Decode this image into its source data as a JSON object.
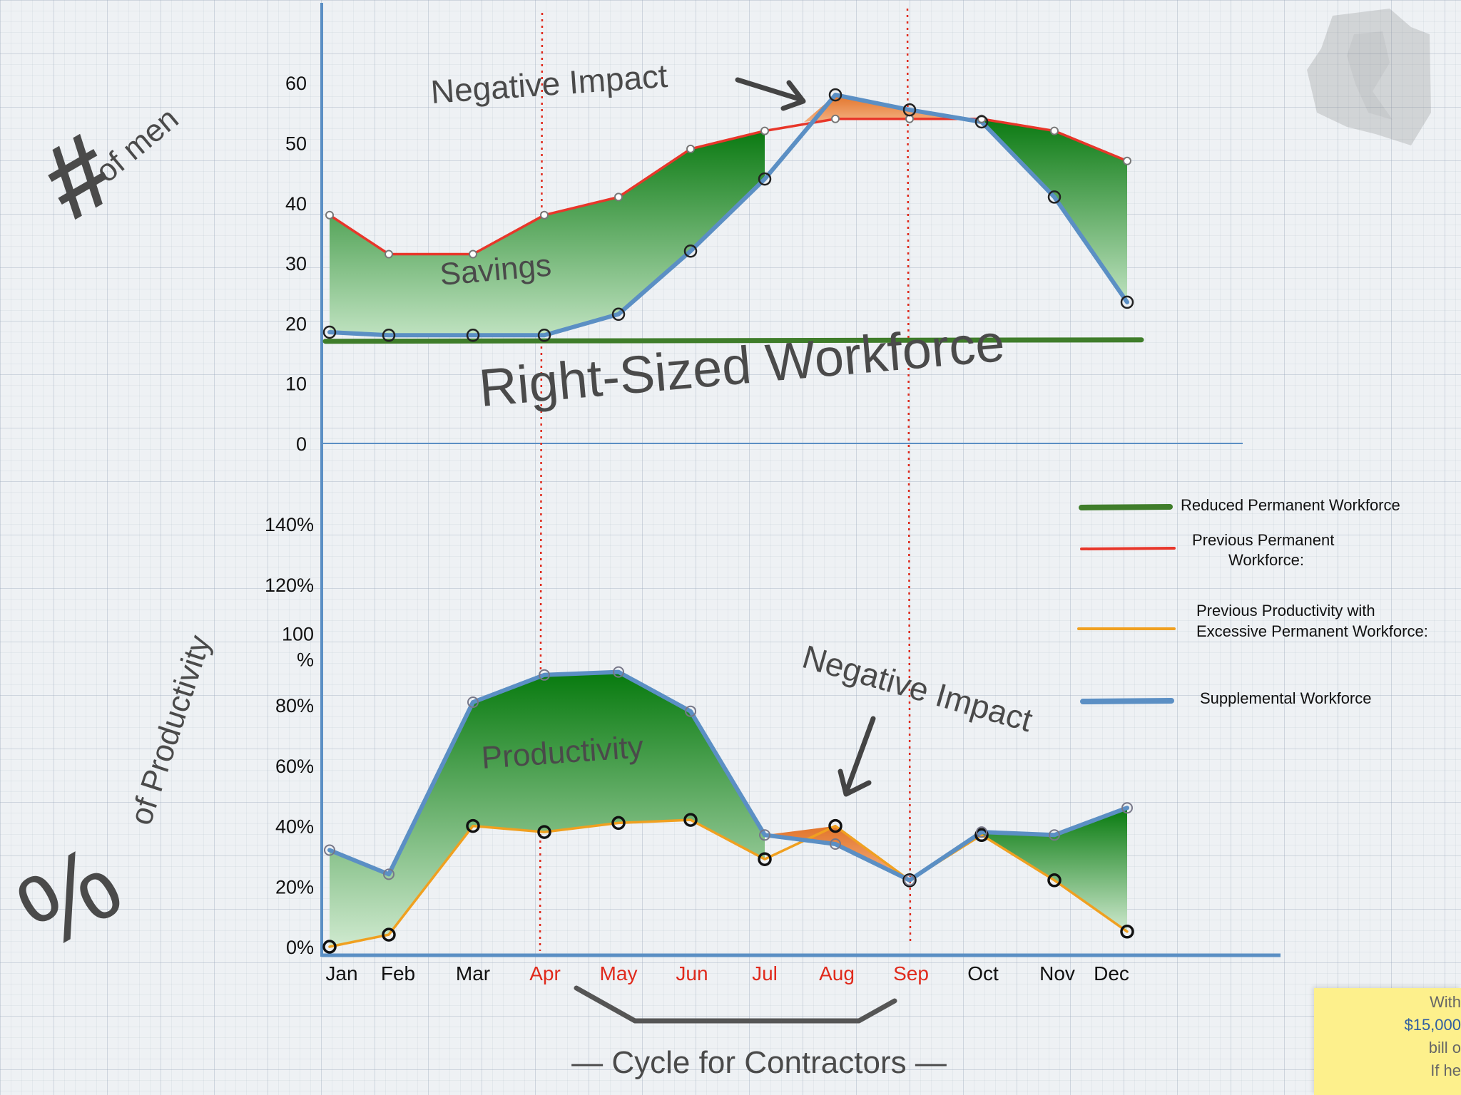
{
  "chart_data": [
    {
      "type": "area",
      "ylabel": "# of men",
      "ylabel_symbol": "#",
      "ylabel_text": "of men",
      "y_ticks": [
        "0",
        "10",
        "20",
        "30",
        "40",
        "50",
        "60"
      ],
      "ylim": [
        0,
        70
      ],
      "categories": [
        "Jan",
        "Feb",
        "Mar",
        "Apr",
        "May",
        "Jun",
        "Jul",
        "Aug",
        "Sep",
        "Oct",
        "Nov",
        "Dec"
      ],
      "series": [
        {
          "name": "Previous Permanent Workforce:",
          "color": "#e8362a",
          "values": [
            38,
            31.5,
            31.5,
            38,
            41,
            49,
            52,
            54,
            54,
            54,
            52,
            47
          ]
        },
        {
          "name": "Supplemental Workforce",
          "color": "#5b8fc4",
          "values": [
            18.5,
            18,
            18,
            18,
            21.5,
            32,
            44,
            58,
            55.5,
            53.5,
            41,
            23.5
          ]
        },
        {
          "name": "Reduced Permanent Workforce",
          "color": "#3f7d2a",
          "values": [
            17,
            17,
            17,
            17,
            17,
            17,
            17,
            17,
            17,
            17,
            17,
            17
          ]
        }
      ],
      "annotations": {
        "savings": "Savings",
        "negative_impact": "Negative Impact",
        "right_sized": "Right-Sized Workforce"
      }
    },
    {
      "type": "area",
      "ylabel": "% of Productivity",
      "ylabel_symbol": "%",
      "ylabel_text": "of Productivity",
      "y_ticks": [
        "0%",
        "20%",
        "40%",
        "60%",
        "80%",
        "100 %",
        "120%",
        "140%"
      ],
      "ylim": [
        0,
        150
      ],
      "categories": [
        "Jan",
        "Feb",
        "Mar",
        "Apr",
        "May",
        "Jun",
        "Jul",
        "Aug",
        "Sep",
        "Oct",
        "Nov",
        "Dec"
      ],
      "series": [
        {
          "name": "Supplemental Workforce",
          "color": "#5b8fc4",
          "values": [
            32,
            24,
            81,
            90,
            91,
            78,
            37,
            34,
            22,
            38,
            37,
            46
          ]
        },
        {
          "name": "Previous Productivity with Excessive Permanent Workforce:",
          "color": "#f0a020",
          "values": [
            0,
            4,
            40,
            38,
            41,
            42,
            29,
            40,
            22,
            37,
            22,
            5
          ]
        }
      ],
      "annotations": {
        "productivity": "Productivity",
        "negative_impact": "Negative Impact"
      }
    }
  ],
  "months": [
    {
      "label": "Jan",
      "highlight": false
    },
    {
      "label": "Feb",
      "highlight": false
    },
    {
      "label": "Mar",
      "highlight": false
    },
    {
      "label": "Apr",
      "highlight": true
    },
    {
      "label": "May",
      "highlight": true
    },
    {
      "label": "Jun",
      "highlight": true
    },
    {
      "label": "Jul",
      "highlight": true
    },
    {
      "label": "Aug",
      "highlight": true
    },
    {
      "label": "Sep",
      "highlight": true
    },
    {
      "label": "Oct",
      "highlight": false
    },
    {
      "label": "Nov",
      "highlight": false
    },
    {
      "label": "Dec",
      "highlight": false
    }
  ],
  "cycle_label": "— Cycle for Contractors —",
  "legend": [
    {
      "lines": [
        "Reduced Permanent Workforce"
      ],
      "color": "#3f7d2a"
    },
    {
      "lines": [
        "Previous Permanent",
        "Workforce:"
      ],
      "color": "#e8362a"
    },
    {
      "lines": [
        "Previous Productivity with",
        "Excessive Permanent Workforce:"
      ],
      "color": "#f0a020"
    },
    {
      "lines": [
        "Supplemental Workforce"
      ],
      "color": "#5b8fc4"
    }
  ],
  "colors": {
    "fill_green": "#0b7a12",
    "fill_orange": "#e2742a",
    "axis": "#5b8fc4",
    "highlight_text": "#e02a1c",
    "dashed_line": "#e02a1c"
  },
  "note": {
    "lines": [
      "With",
      "$15,000",
      "bill o",
      "",
      "If he"
    ]
  }
}
